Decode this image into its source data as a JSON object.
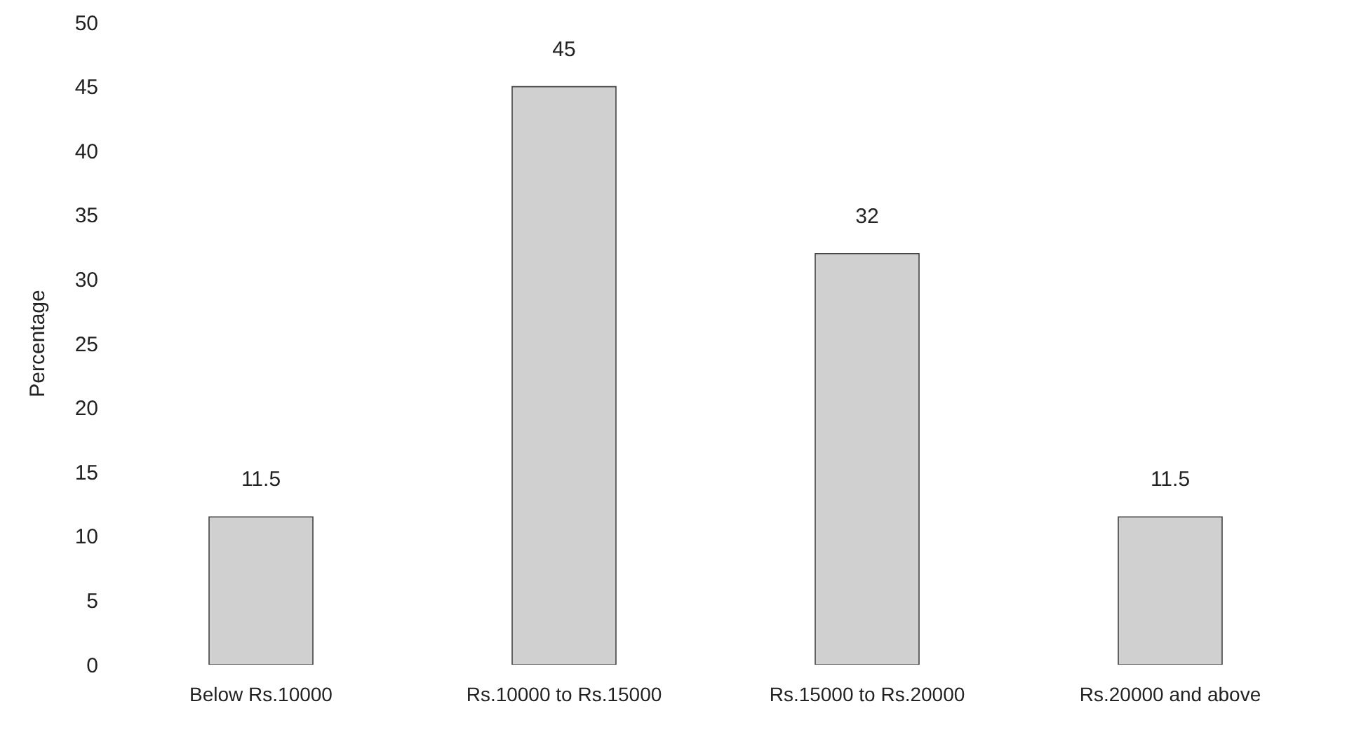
{
  "chart_data": {
    "type": "bar",
    "ylabel": "Percentage",
    "categories": [
      "Below Rs.10000",
      "Rs.10000 to Rs.15000",
      "Rs.15000 to Rs.20000",
      "Rs.20000 and above"
    ],
    "values": [
      11.5,
      45,
      32,
      11.5
    ],
    "color": "#d0d0d0",
    "ylim": [
      0,
      50
    ],
    "yticks": [
      0,
      5,
      10,
      15,
      20,
      25,
      30,
      35,
      40,
      45,
      50
    ],
    "data_labels": true
  }
}
